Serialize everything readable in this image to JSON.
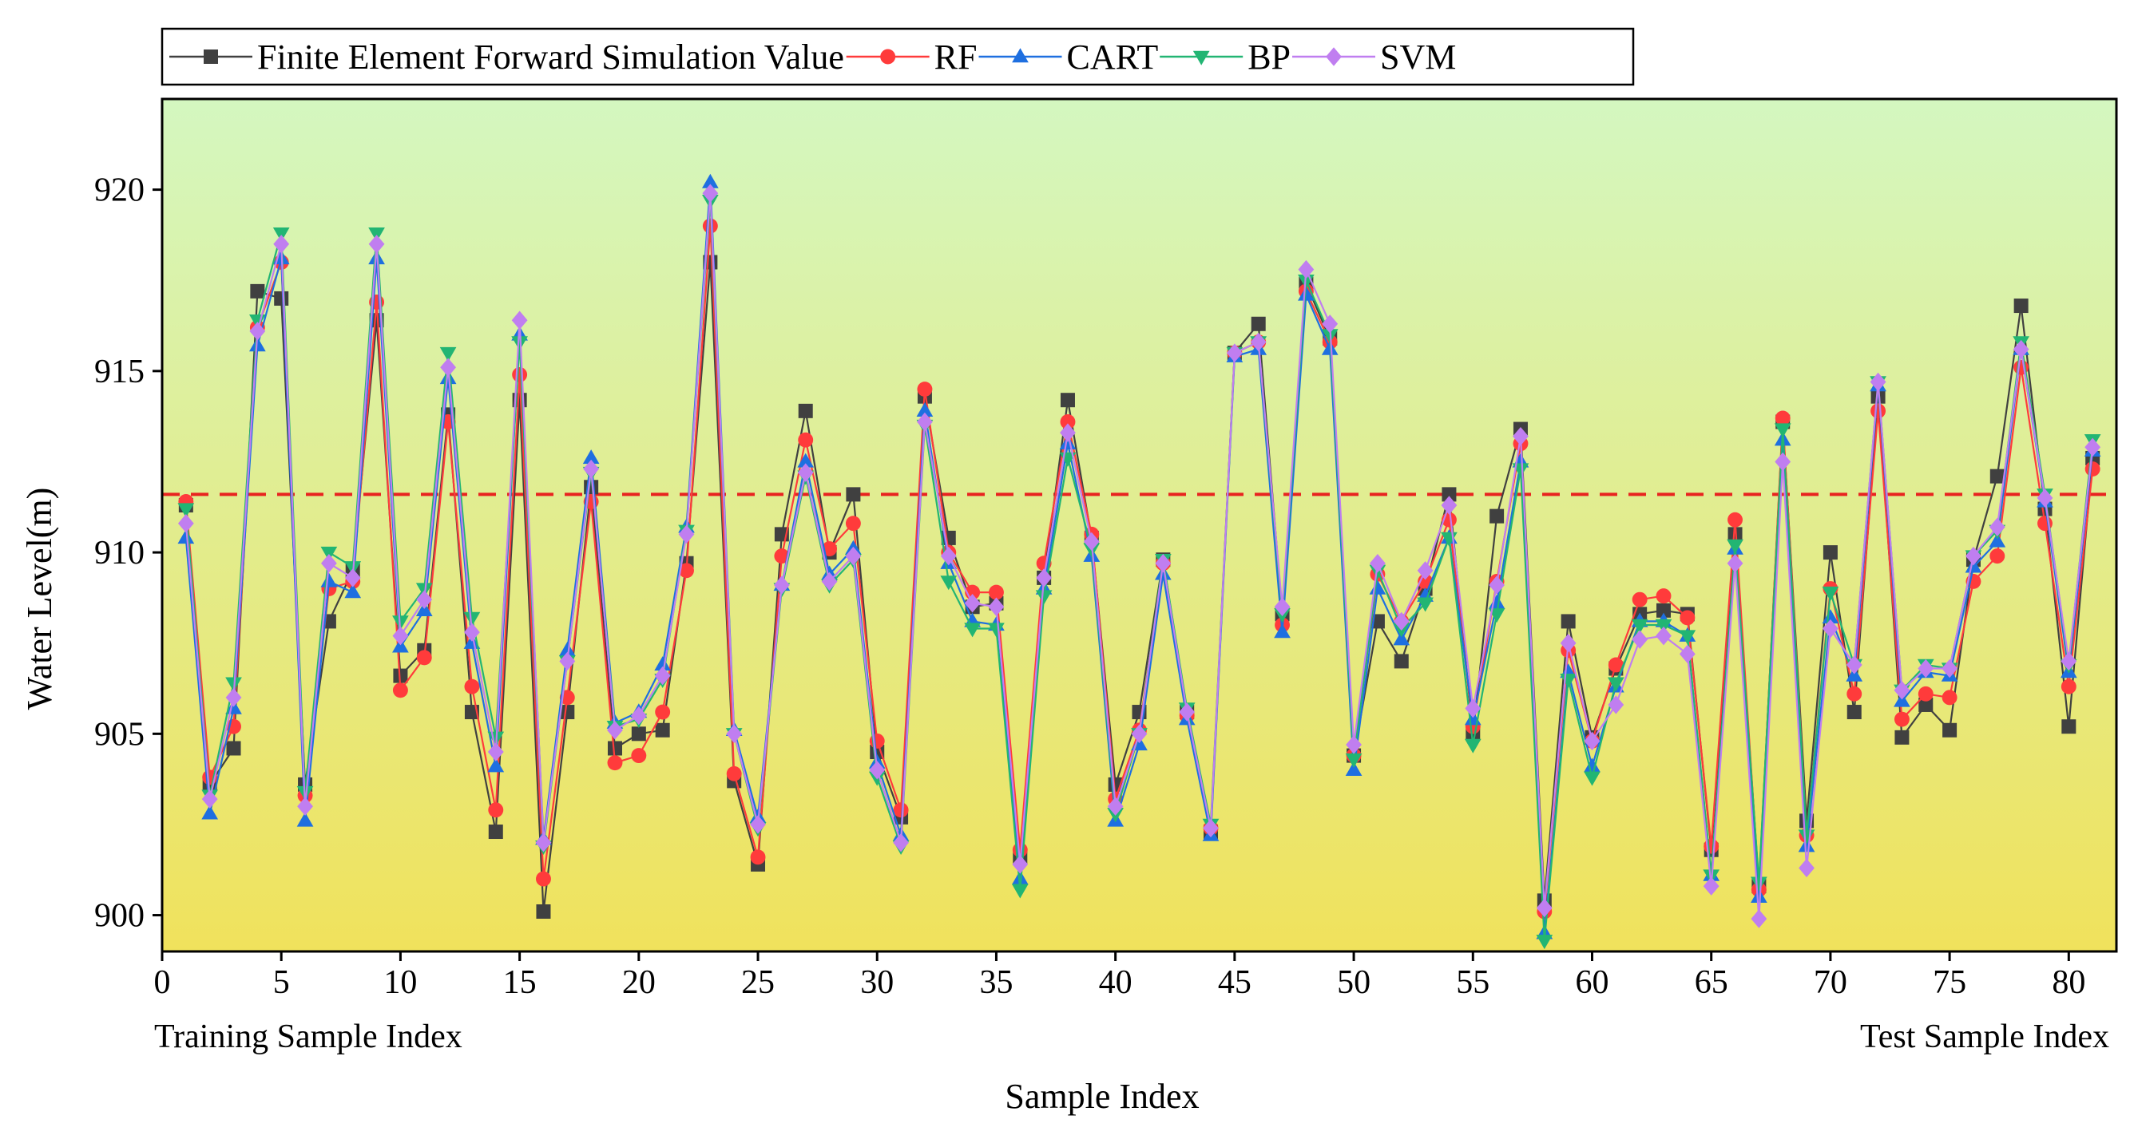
{
  "chart_data": {
    "type": "line",
    "title": "",
    "xlabel": "Sample Index",
    "ylabel": "Water Level(m)",
    "xlim": [
      0,
      82
    ],
    "ylim": [
      899,
      922.5
    ],
    "xticks": [
      0,
      5,
      10,
      15,
      20,
      25,
      30,
      35,
      40,
      45,
      50,
      55,
      60,
      65,
      70,
      75,
      80
    ],
    "yticks": [
      900,
      905,
      910,
      915,
      920
    ],
    "x": [
      1,
      2,
      3,
      4,
      5,
      6,
      7,
      8,
      9,
      10,
      11,
      12,
      13,
      14,
      15,
      16,
      17,
      18,
      19,
      20,
      21,
      22,
      23,
      24,
      25,
      26,
      27,
      28,
      29,
      30,
      31,
      32,
      33,
      34,
      35,
      36,
      37,
      38,
      39,
      40,
      41,
      42,
      43,
      44,
      45,
      46,
      47,
      48,
      49,
      50,
      51,
      52,
      53,
      54,
      55,
      56,
      57,
      58,
      59,
      60,
      61,
      62,
      63,
      64,
      65,
      66,
      67,
      68,
      69,
      70,
      71,
      72,
      73,
      74,
      75,
      76,
      77,
      78,
      79,
      80,
      81
    ],
    "threshold": 911.6,
    "left_annotation": "Training Sample Index",
    "right_annotation": "Test Sample Index",
    "legend_position": "top-left, outside plot",
    "background_gradient": [
      "#d4f7c0",
      "#f0e25c"
    ],
    "series": [
      {
        "name": "Finite Element Forward Simulation Value",
        "color": "#404040",
        "marker": "square",
        "values": [
          911.3,
          903.6,
          904.6,
          917.2,
          917.0,
          903.6,
          908.1,
          909.5,
          916.4,
          906.6,
          907.3,
          913.8,
          905.6,
          902.3,
          914.2,
          900.1,
          905.6,
          911.8,
          904.6,
          905.0,
          905.1,
          909.7,
          918.0,
          903.7,
          901.4,
          910.5,
          913.9,
          910.0,
          911.6,
          904.5,
          902.7,
          914.3,
          910.4,
          908.5,
          908.6,
          901.6,
          909.3,
          914.2,
          910.4,
          903.6,
          905.6,
          909.8,
          905.6,
          902.3,
          915.5,
          916.3,
          908.3,
          917.4,
          915.9,
          904.4,
          908.1,
          907.0,
          909.0,
          911.6,
          905.0,
          911.0,
          913.4,
          900.4,
          908.1,
          904.9,
          906.8,
          908.3,
          908.4,
          908.3,
          901.8,
          910.5,
          900.8,
          913.6,
          902.6,
          910.0,
          905.6,
          914.3,
          904.9,
          905.8,
          905.1,
          909.8,
          912.1,
          916.8,
          911.2,
          905.2,
          912.6
        ]
      },
      {
        "name": "RF",
        "color": "#ff3b3b",
        "marker": "circle",
        "values": [
          911.4,
          903.8,
          905.2,
          916.2,
          918.0,
          903.3,
          909.0,
          909.2,
          916.9,
          906.2,
          907.1,
          913.6,
          906.3,
          902.9,
          914.9,
          901.0,
          906.0,
          911.4,
          904.2,
          904.4,
          905.6,
          909.5,
          919.0,
          903.9,
          901.6,
          909.9,
          913.1,
          910.1,
          910.8,
          904.8,
          902.9,
          914.5,
          910.0,
          908.9,
          908.9,
          901.8,
          909.7,
          913.6,
          910.5,
          903.2,
          905.1,
          909.7,
          905.5,
          902.4,
          915.5,
          915.8,
          908.0,
          917.2,
          915.8,
          904.4,
          909.4,
          908.1,
          909.2,
          910.9,
          905.2,
          909.2,
          913.0,
          900.1,
          907.3,
          904.8,
          906.9,
          908.7,
          908.8,
          908.2,
          901.9,
          910.9,
          900.7,
          913.7,
          902.2,
          909.0,
          906.1,
          913.9,
          905.4,
          906.1,
          906.0,
          909.2,
          909.9,
          915.1,
          910.8,
          906.3,
          912.3
        ]
      },
      {
        "name": "CART",
        "color": "#1e6fe0",
        "marker": "triangle-up",
        "values": [
          910.4,
          902.8,
          905.7,
          915.7,
          918.1,
          902.6,
          909.2,
          908.9,
          918.1,
          907.4,
          908.4,
          914.8,
          907.5,
          904.1,
          916.0,
          902.1,
          907.3,
          912.6,
          905.3,
          905.6,
          906.9,
          910.7,
          920.2,
          905.1,
          902.7,
          909.1,
          912.5,
          909.4,
          910.1,
          904.2,
          902.2,
          913.9,
          909.7,
          908.1,
          908.0,
          901.0,
          909.0,
          913.0,
          909.9,
          902.6,
          904.7,
          909.4,
          905.4,
          902.2,
          915.4,
          915.6,
          907.8,
          917.1,
          915.6,
          904.0,
          909.0,
          907.6,
          908.8,
          910.4,
          905.4,
          908.6,
          912.5,
          899.5,
          906.7,
          904.1,
          906.3,
          908.1,
          908.1,
          907.7,
          901.1,
          910.1,
          900.5,
          913.1,
          901.9,
          908.2,
          906.6,
          914.6,
          905.9,
          906.7,
          906.6,
          909.6,
          910.3,
          915.6,
          911.4,
          906.7,
          912.8
        ]
      },
      {
        "name": "BP",
        "color": "#22b573",
        "marker": "triangle-down",
        "values": [
          911.2,
          903.3,
          906.4,
          916.4,
          918.8,
          903.4,
          910.0,
          909.6,
          918.8,
          908.1,
          909.0,
          915.5,
          908.2,
          904.9,
          915.8,
          901.9,
          907.0,
          912.2,
          905.2,
          905.4,
          906.5,
          910.6,
          919.7,
          905.0,
          902.4,
          909.0,
          912.1,
          909.1,
          909.8,
          903.8,
          901.9,
          913.5,
          909.2,
          907.9,
          907.9,
          900.7,
          908.8,
          912.6,
          910.1,
          902.8,
          905.0,
          909.8,
          905.7,
          902.5,
          915.5,
          915.8,
          908.3,
          917.5,
          916.0,
          904.3,
          909.5,
          907.9,
          908.6,
          910.4,
          904.7,
          908.3,
          912.3,
          899.3,
          906.5,
          903.8,
          906.4,
          908.0,
          908.0,
          907.7,
          901.1,
          910.2,
          900.9,
          913.4,
          902.2,
          908.9,
          906.9,
          914.7,
          906.2,
          906.9,
          906.8,
          909.9,
          910.6,
          915.8,
          911.6,
          906.9,
          913.1
        ]
      },
      {
        "name": "SVM",
        "color": "#c07ef0",
        "marker": "diamond",
        "values": [
          910.8,
          903.2,
          906.0,
          916.1,
          918.5,
          903.0,
          909.7,
          909.3,
          918.5,
          907.7,
          908.7,
          915.1,
          907.8,
          904.5,
          916.4,
          902.0,
          907.0,
          912.3,
          905.1,
          905.5,
          906.6,
          910.5,
          919.9,
          905.0,
          902.5,
          909.1,
          912.2,
          909.2,
          909.9,
          904.0,
          902.0,
          913.6,
          909.9,
          908.6,
          908.5,
          901.4,
          909.3,
          913.3,
          910.3,
          903.0,
          905.0,
          909.7,
          905.6,
          902.4,
          915.5,
          915.8,
          908.5,
          917.8,
          916.3,
          904.7,
          909.7,
          908.1,
          909.5,
          911.3,
          905.7,
          909.1,
          913.2,
          900.2,
          907.5,
          904.8,
          905.8,
          907.6,
          907.7,
          907.2,
          900.8,
          909.7,
          899.9,
          912.5,
          901.3,
          907.9,
          906.9,
          914.7,
          906.2,
          906.8,
          906.8,
          909.9,
          910.7,
          915.6,
          911.5,
          907.0,
          912.9
        ]
      }
    ]
  }
}
